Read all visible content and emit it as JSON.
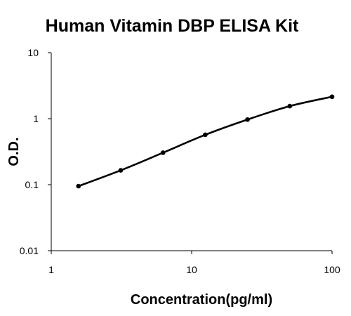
{
  "chart_data": {
    "type": "line",
    "title": "Human Vitamin DBP ELISA Kit",
    "xlabel": "Concentration(pg/ml)",
    "ylabel": "O.D.",
    "xscale": "log",
    "yscale": "log",
    "xlim": [
      1,
      100
    ],
    "ylim": [
      0.01,
      10
    ],
    "x_ticks": [
      "1",
      "10",
      "100"
    ],
    "y_ticks": [
      "0.01",
      "0.1",
      "1",
      "10"
    ],
    "grid": false,
    "legend": "none",
    "series": [
      {
        "x": [
          1.5625,
          3.125,
          6.25,
          12.5,
          25,
          50,
          100
        ],
        "values": [
          0.095,
          0.165,
          0.305,
          0.57,
          0.97,
          1.55,
          2.15
        ],
        "color": "#000000",
        "markers": true
      }
    ]
  }
}
